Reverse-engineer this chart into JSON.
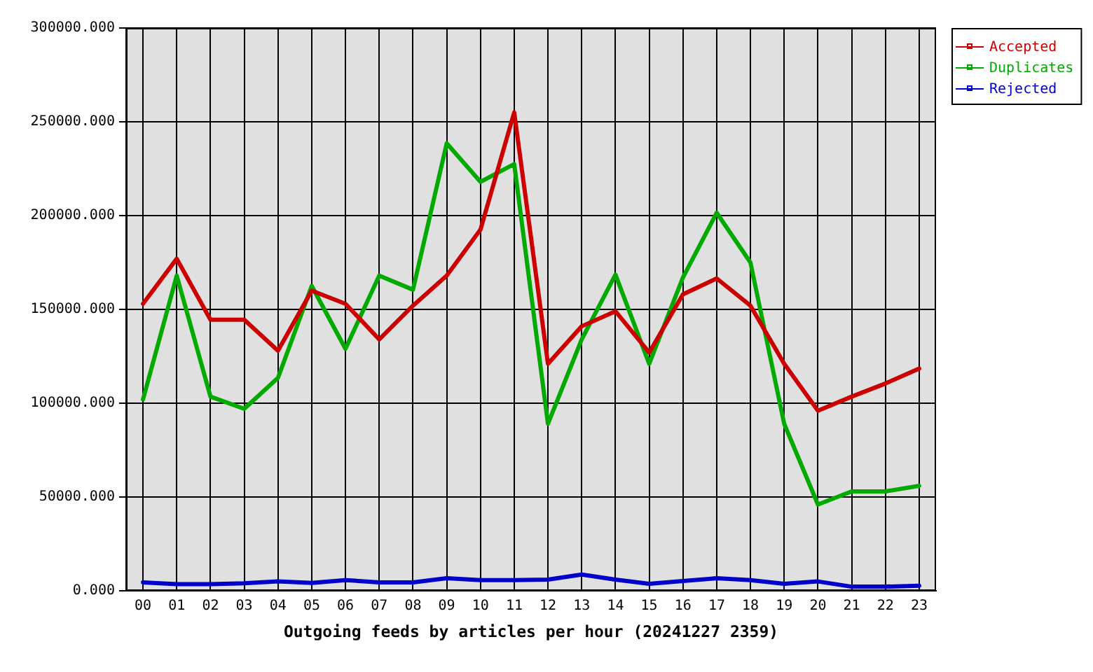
{
  "chart_data": {
    "type": "line",
    "xlabel": "Outgoing feeds by articles per hour (20241227 2359)",
    "categories": [
      "00",
      "01",
      "02",
      "03",
      "04",
      "05",
      "06",
      "07",
      "08",
      "09",
      "10",
      "11",
      "12",
      "13",
      "14",
      "15",
      "16",
      "17",
      "18",
      "19",
      "20",
      "21",
      "22",
      "23"
    ],
    "series": [
      {
        "name": "Accepted",
        "color": "#cc0000",
        "values": [
          153000,
          177000,
          144500,
          144500,
          128000,
          160000,
          153000,
          134000,
          152000,
          168000,
          192500,
          255000,
          121000,
          141000,
          149000,
          127000,
          158000,
          166500,
          152000,
          121000,
          96000,
          103500,
          110500,
          118500
        ]
      },
      {
        "name": "Duplicates",
        "color": "#00aa00",
        "values": [
          102000,
          168000,
          103500,
          97000,
          113500,
          162500,
          129000,
          168000,
          160500,
          238500,
          218000,
          227500,
          89000,
          134000,
          168500,
          121000,
          167000,
          201500,
          175000,
          89000,
          46000,
          53000,
          53000,
          56000
        ]
      },
      {
        "name": "Rejected",
        "color": "#0000cc",
        "values": [
          4500,
          3500,
          3500,
          4000,
          5000,
          4200,
          5700,
          4500,
          4500,
          6700,
          5700,
          5700,
          6000,
          8700,
          6000,
          3700,
          5200,
          6700,
          5700,
          3700,
          5000,
          2200,
          2200,
          2700
        ]
      }
    ],
    "ylim": [
      0,
      300000
    ],
    "yticks": [
      {
        "value": 0,
        "label": "0.000"
      },
      {
        "value": 50000,
        "label": "50000.000"
      },
      {
        "value": 100000,
        "label": "100000.000"
      },
      {
        "value": 150000,
        "label": "150000.000"
      },
      {
        "value": 200000,
        "label": "200000.000"
      },
      {
        "value": 250000,
        "label": "250000.000"
      },
      {
        "value": 300000,
        "label": "300000.000"
      }
    ],
    "grid": true,
    "legend": "top right"
  }
}
